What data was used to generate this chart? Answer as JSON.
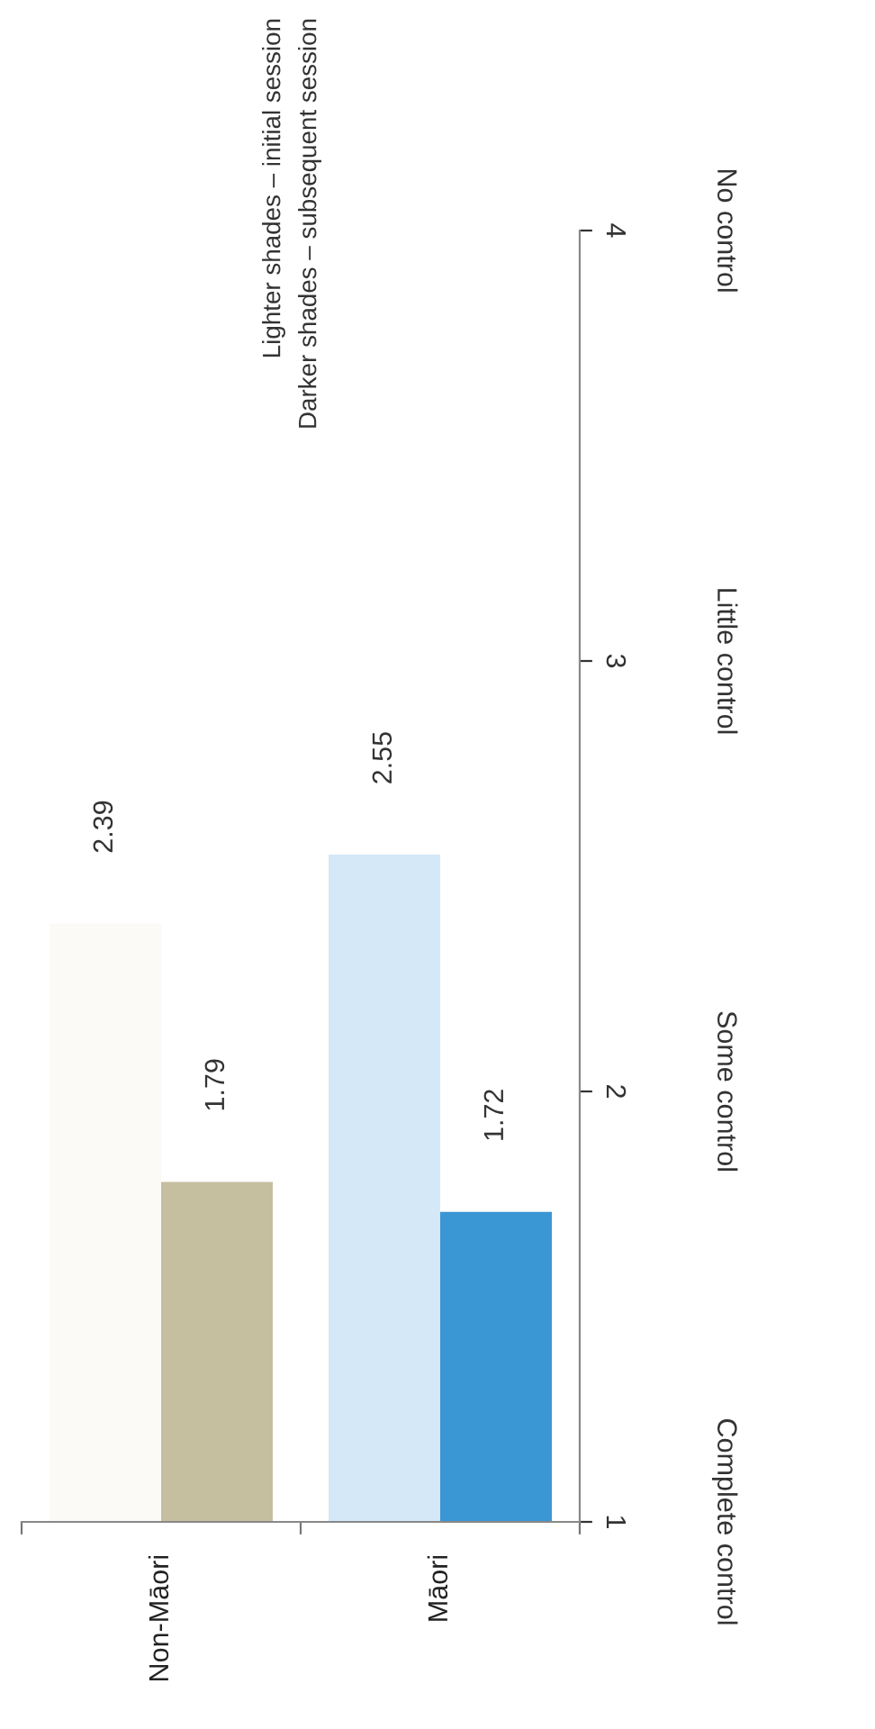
{
  "chart_data": {
    "type": "bar",
    "categories": [
      "Non-Māori",
      "Māori"
    ],
    "series": [
      {
        "colors": [
          "#fbfaf6",
          "#d4e8f7"
        ],
        "values": [
          2.39,
          2.55
        ]
      },
      {
        "colors": [
          "#c5bfa0",
          "#3b96d4"
        ],
        "values": [
          1.79,
          1.72
        ]
      }
    ],
    "ylim": [
      1,
      4
    ],
    "yticks": [
      1,
      2,
      3,
      4
    ],
    "data_labels": true,
    "grid": false,
    "annotations": [
      "Complete control",
      "Some control",
      "Little control",
      "No control",
      "Lighter shades – initial session",
      "Darker shades – subsequent session"
    ]
  }
}
